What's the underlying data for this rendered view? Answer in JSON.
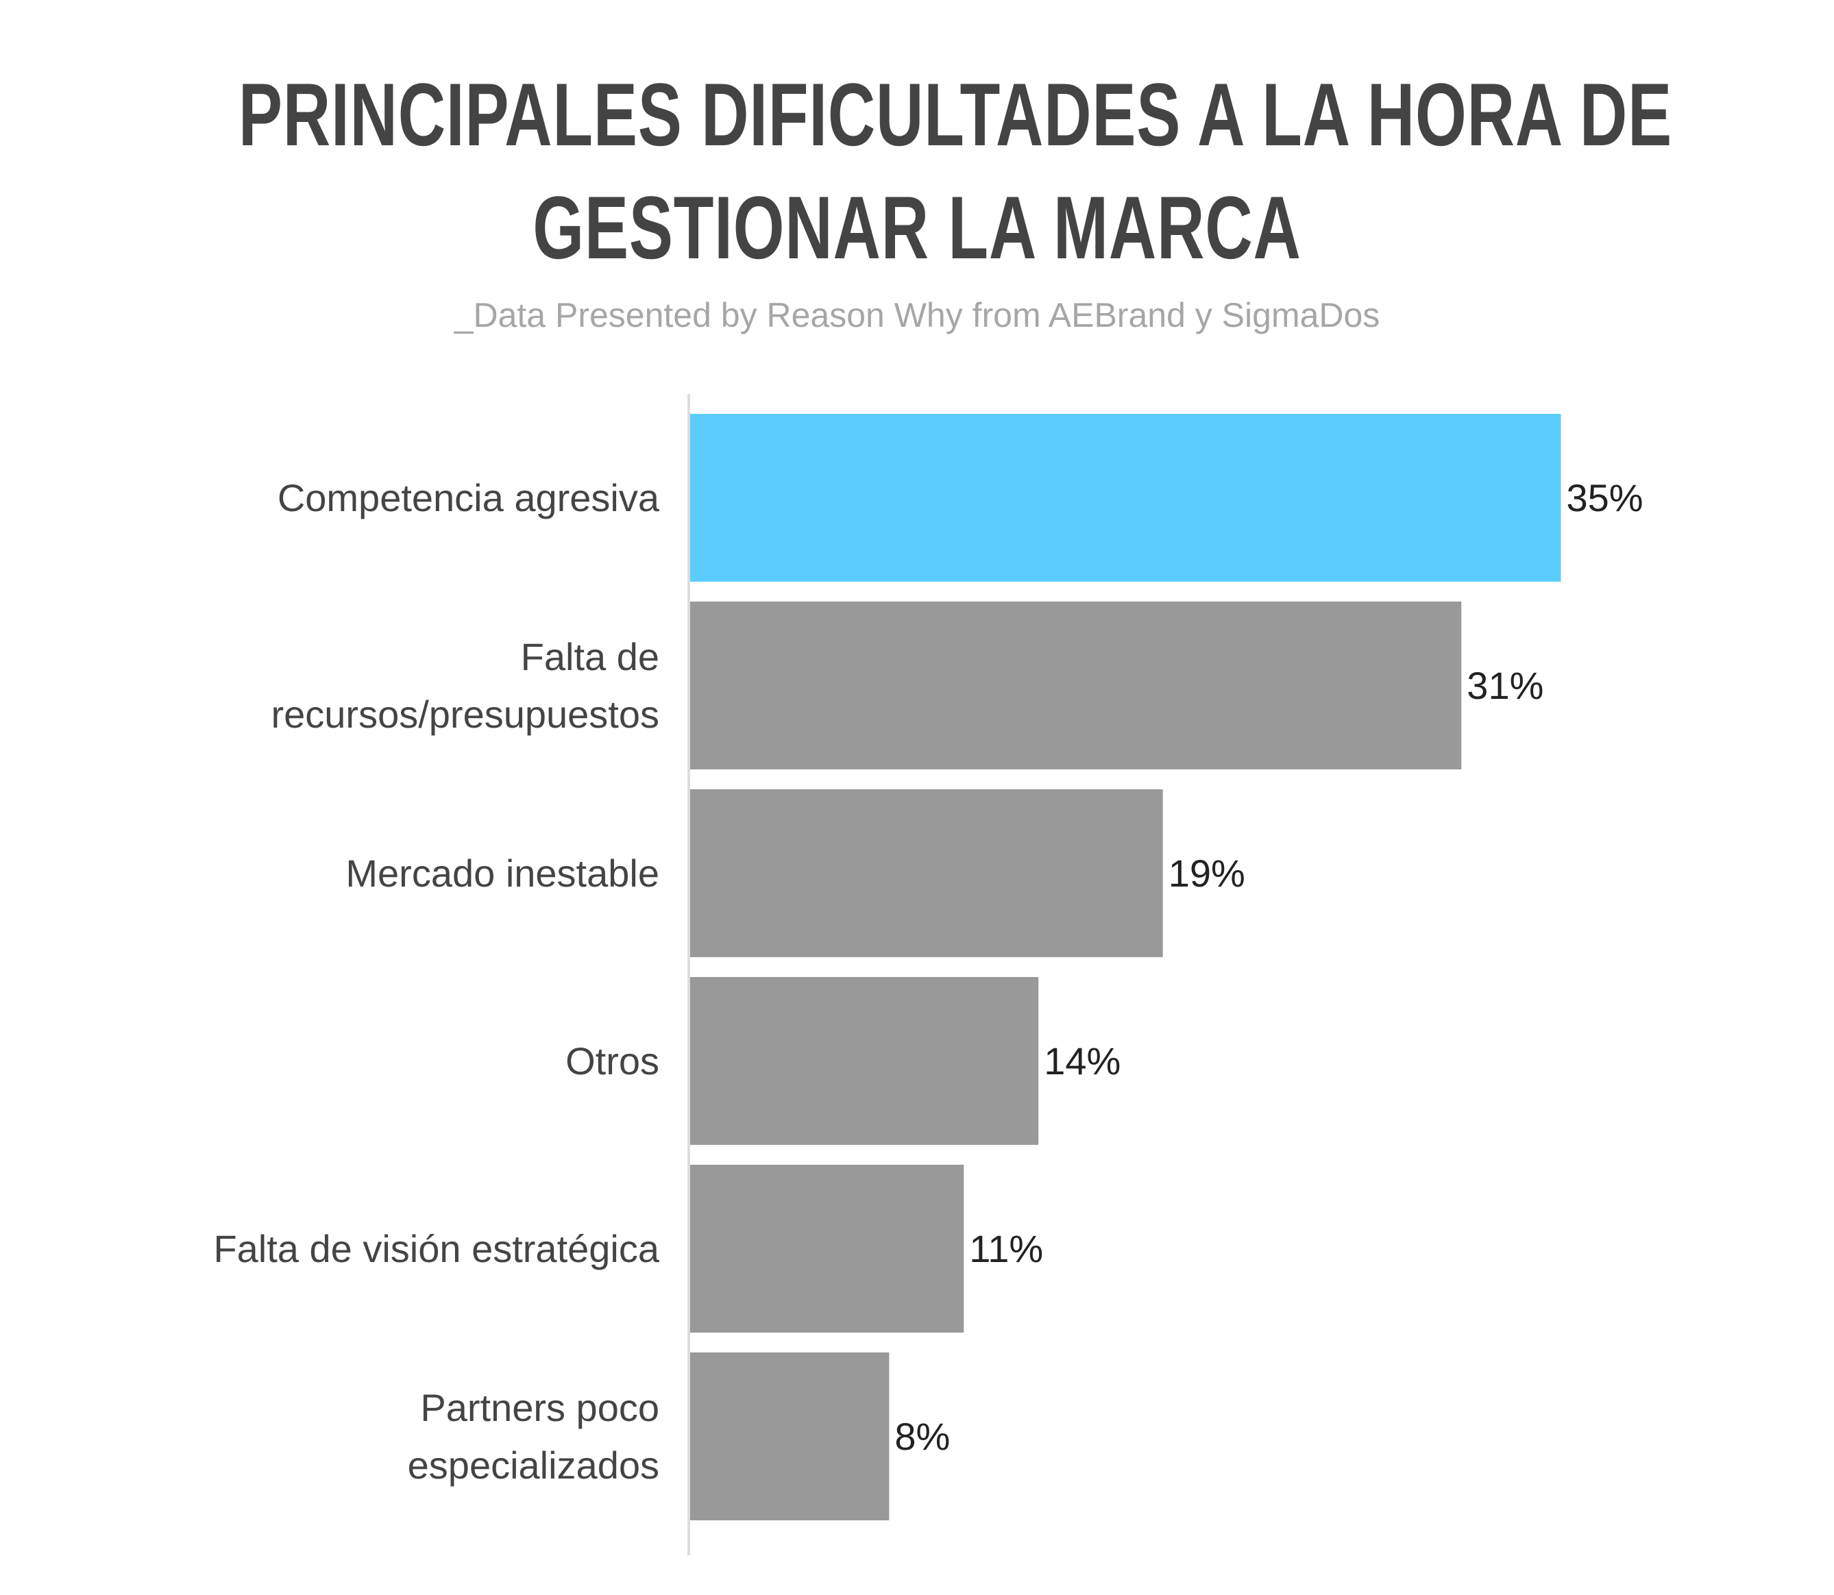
{
  "chart_data": {
    "type": "bar",
    "orientation": "horizontal",
    "title_lines": [
      "PRINCIPALES DIFICULTADES A LA HORA DE",
      "GESTIONAR LA MARCA"
    ],
    "subtitle": "_Data Presented by Reason Why from AEBrand y SigmaDos",
    "categories": [
      [
        "Competencia agresiva"
      ],
      [
        "Falta de",
        "recursos/presupuestos"
      ],
      [
        "Mercado inestable"
      ],
      [
        "Otros"
      ],
      [
        "Falta de visión estratégica"
      ],
      [
        "Partners poco",
        "especializados"
      ]
    ],
    "values": [
      35,
      31,
      19,
      14,
      11,
      8
    ],
    "value_labels": [
      "35%",
      "31%",
      "19%",
      "14%",
      "11%",
      "8%"
    ],
    "unit": "%",
    "highlight_index": 0,
    "colors": {
      "highlight": "#5bcdfc",
      "bar": "#999999",
      "axis": "#dddddd",
      "title": "#444444",
      "subtitle": "#a6a6a6"
    },
    "grid": false,
    "legend": "none"
  }
}
